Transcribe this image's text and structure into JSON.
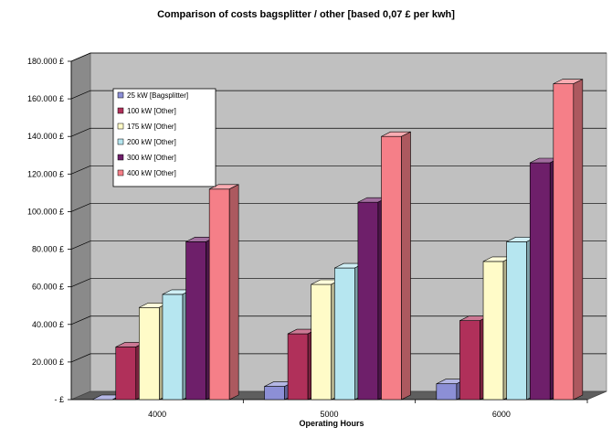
{
  "chart_data": {
    "type": "bar",
    "title": "Comparison of costs bagsplitter / other [based 0,07 £ per kwh]",
    "xlabel": "Operating Hours",
    "ylabel": "",
    "categories": [
      "4000",
      "5000",
      "6000"
    ],
    "ylim": [
      0,
      180000
    ],
    "yticks": [
      0,
      20000,
      40000,
      60000,
      80000,
      100000,
      120000,
      140000,
      160000,
      180000
    ],
    "ytick_labels": [
      "- £",
      "20.000 £",
      "40.000 £",
      "60.000 £",
      "80.000 £",
      "100.000 £",
      "120.000 £",
      "140.000 £",
      "160.000 £",
      "180.000 £"
    ],
    "grid": true,
    "legend_position": "top-left",
    "series": [
      {
        "name": "25   kW [Bagsplitter]",
        "color": "#8c8fd6",
        "values": [
          0,
          7000,
          8400
        ]
      },
      {
        "name": "100 kW [Other]",
        "color": "#b0305a",
        "values": [
          28000,
          35000,
          42000
        ]
      },
      {
        "name": "175 kW [Other]",
        "color": "#fffbc8",
        "values": [
          49000,
          61300,
          73500
        ]
      },
      {
        "name": "200 kW [Other]",
        "color": "#b6e6f0",
        "values": [
          56000,
          70000,
          84000
        ]
      },
      {
        "name": "300 kW [Other]",
        "color": "#6e1f6a",
        "values": [
          84000,
          105000,
          126000
        ]
      },
      {
        "name": "400 kW [Other]",
        "color": "#f57f88",
        "values": [
          112000,
          140000,
          168000
        ]
      }
    ]
  }
}
